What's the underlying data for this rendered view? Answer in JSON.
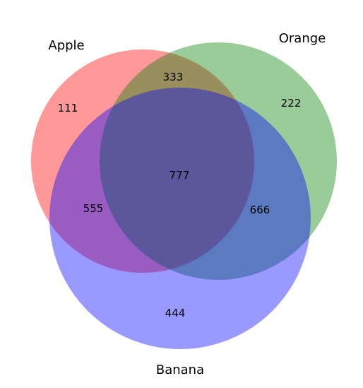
{
  "diagram": {
    "type": "venn3",
    "sets": [
      {
        "key": "A",
        "name": "Apple",
        "color": "#ff0000"
      },
      {
        "key": "B",
        "name": "Orange",
        "color": "#008000"
      },
      {
        "key": "C",
        "name": "Banana",
        "color": "#0000ff"
      }
    ],
    "regions": {
      "A_only": "111",
      "B_only": "222",
      "A_B_only": "333",
      "C_only": "444",
      "A_C_only": "555",
      "B_C_only": "666",
      "A_B_C": "777"
    },
    "colors": {
      "apple_fill": "#ff9999",
      "orange_fill": "#99cc99",
      "banana_fill": "#9999ff"
    }
  }
}
